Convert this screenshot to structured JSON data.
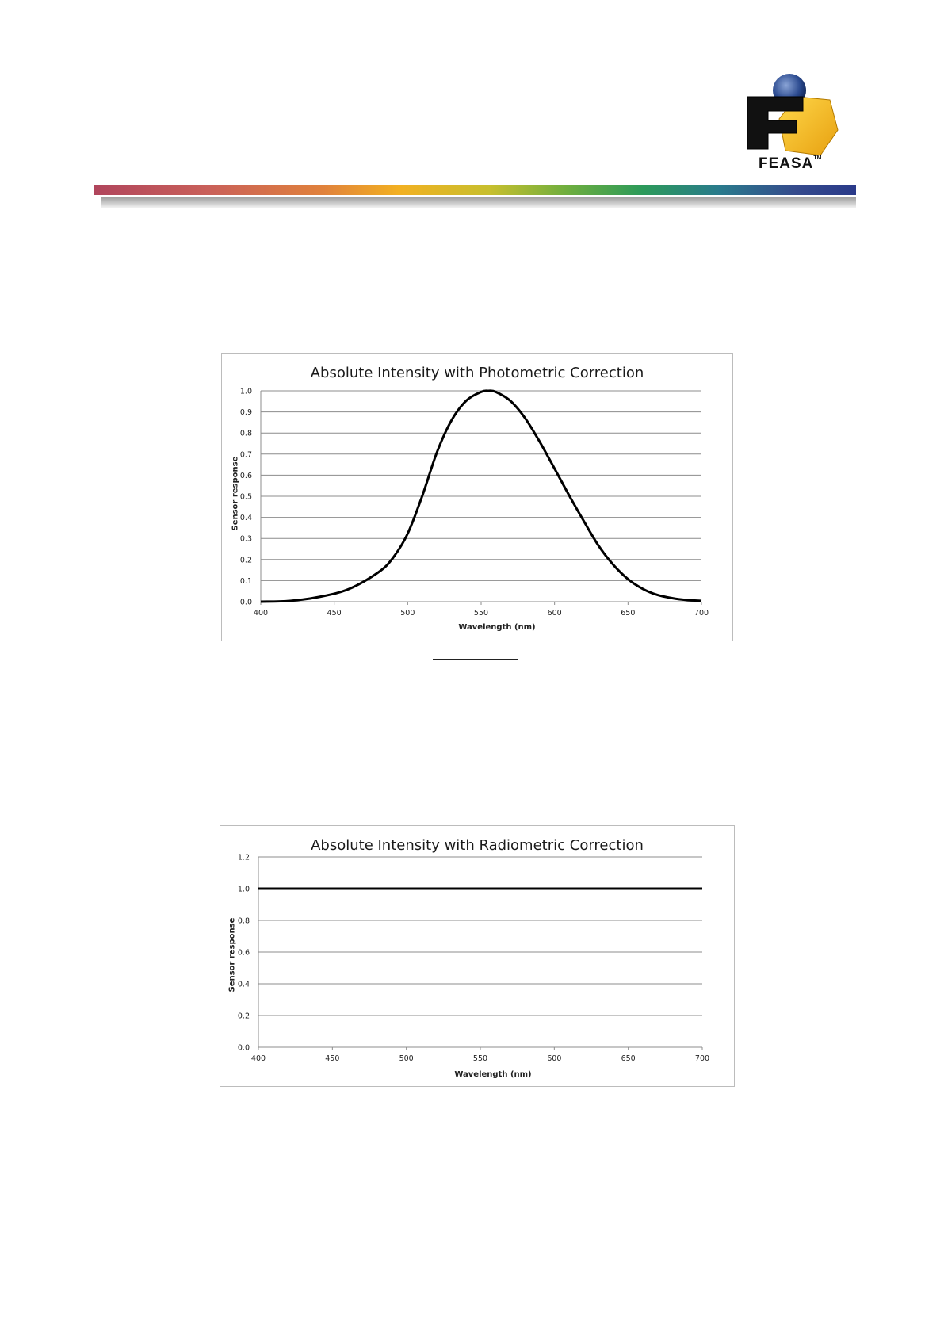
{
  "logo": {
    "text": "FEASA",
    "tm": "TM"
  },
  "charts": [
    {
      "title": "Absolute Intensity with Photometric Correction",
      "ylabel": "Sensor response",
      "xlabel": "Wavelength (nm)"
    },
    {
      "title": "Absolute Intensity with Radiometric Correction",
      "ylabel": "Sensor response",
      "xlabel": "Wavelength (nm)"
    }
  ],
  "chart_data": [
    {
      "type": "line",
      "title": "Absolute Intensity with Photometric Correction",
      "xlabel": "Wavelength (nm)",
      "ylabel": "Sensor response",
      "xlim": [
        400,
        700
      ],
      "ylim": [
        0,
        1.0
      ],
      "xticks": [
        "400",
        "450",
        "500",
        "550",
        "600",
        "650",
        "700"
      ],
      "yticks": [
        "0.0",
        "0.1",
        "0.2",
        "0.3",
        "0.4",
        "0.5",
        "0.6",
        "0.7",
        "0.8",
        "0.9",
        "1.0"
      ],
      "grid": true,
      "legend": "none",
      "series": [
        {
          "x": [
            400,
            420,
            440,
            460,
            480,
            490,
            500,
            510,
            520,
            530,
            540,
            550,
            555,
            560,
            570,
            580,
            590,
            600,
            610,
            620,
            630,
            640,
            650,
            660,
            670,
            680,
            690,
            700
          ],
          "y": [
            0.0,
            0.004,
            0.023,
            0.06,
            0.139,
            0.208,
            0.323,
            0.503,
            0.71,
            0.862,
            0.954,
            0.995,
            1.0,
            0.995,
            0.952,
            0.87,
            0.757,
            0.631,
            0.503,
            0.381,
            0.265,
            0.175,
            0.107,
            0.061,
            0.032,
            0.017,
            0.008,
            0.004
          ]
        }
      ]
    },
    {
      "type": "line",
      "title": "Absolute Intensity with Radiometric Correction",
      "xlabel": "Wavelength (nm)",
      "ylabel": "Sensor response",
      "xlim": [
        400,
        700
      ],
      "ylim": [
        0,
        1.2
      ],
      "xticks": [
        "400",
        "450",
        "500",
        "550",
        "600",
        "650",
        "700"
      ],
      "yticks": [
        "0.0",
        "0.2",
        "0.4",
        "0.6",
        "0.8",
        "1.0",
        "1.2"
      ],
      "grid": true,
      "legend": "none",
      "series": [
        {
          "x": [
            400,
            700
          ],
          "y": [
            1.0,
            1.0
          ]
        }
      ]
    }
  ]
}
